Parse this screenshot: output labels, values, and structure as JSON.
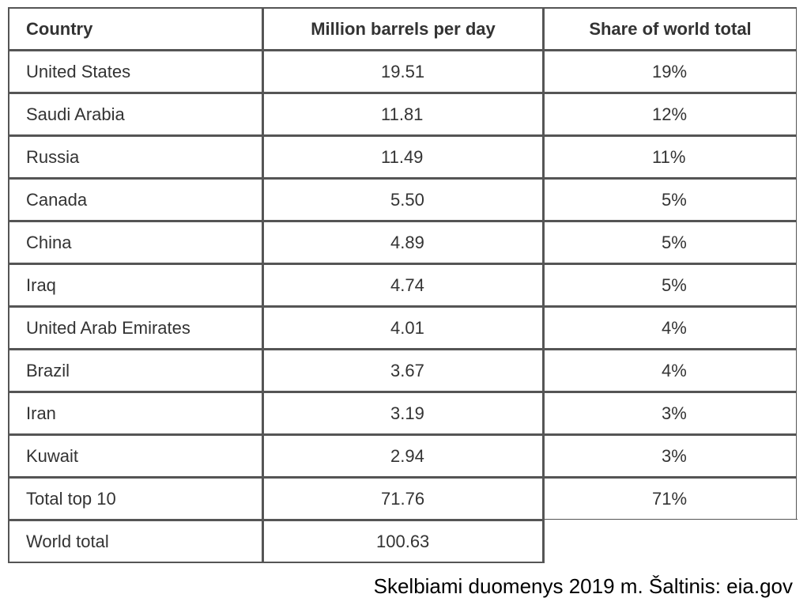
{
  "table": {
    "headers": [
      "Country",
      "Million barrels per day",
      "Share of world total"
    ],
    "rows": [
      {
        "country": "United States",
        "mbpd": "19.51",
        "share": "19%"
      },
      {
        "country": "Saudi Arabia",
        "mbpd": "11.81",
        "share": "12%"
      },
      {
        "country": "Russia",
        "mbpd": "11.49",
        "share": "11%"
      },
      {
        "country": "Canada",
        "mbpd": "5.50",
        "share": "5%"
      },
      {
        "country": "China",
        "mbpd": "4.89",
        "share": "5%"
      },
      {
        "country": "Iraq",
        "mbpd": "4.74",
        "share": "5%"
      },
      {
        "country": "United Arab Emirates",
        "mbpd": "4.01",
        "share": "4%"
      },
      {
        "country": "Brazil",
        "mbpd": "3.67",
        "share": "4%"
      },
      {
        "country": "Iran",
        "mbpd": "3.19",
        "share": "3%"
      },
      {
        "country": "Kuwait",
        "mbpd": "2.94",
        "share": "3%"
      },
      {
        "country": "Total top 10",
        "mbpd": "71.76",
        "share": "71%"
      },
      {
        "country": "World total",
        "mbpd": "100.63",
        "share": ""
      }
    ]
  },
  "caption": "Skelbiami duomenys 2019 m. Šaltinis: eia.gov"
}
